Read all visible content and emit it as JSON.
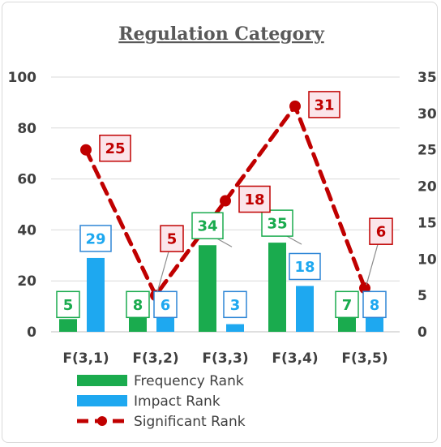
{
  "chart_data": {
    "type": "bar",
    "title": "Regulation Category",
    "categories": [
      "F(3,1)",
      "F(3,2)",
      "F(3,3)",
      "F(3,4)",
      "F(3,5)"
    ],
    "series": [
      {
        "name": "Frequency Rank",
        "type": "bar",
        "axis": "left",
        "color": "#1aab4e",
        "values": [
          5,
          8,
          34,
          35,
          7
        ]
      },
      {
        "name": "Impact Rank",
        "type": "bar",
        "axis": "left",
        "color": "#1ea8f0",
        "values": [
          29,
          6,
          3,
          18,
          8
        ]
      },
      {
        "name": "Significant Rank",
        "type": "line",
        "axis": "right",
        "color": "#c00000",
        "values": [
          25,
          5,
          18,
          31,
          6
        ]
      }
    ],
    "y_left": {
      "min": 0,
      "max": 100,
      "ticks": [
        0,
        20,
        40,
        60,
        80,
        100
      ]
    },
    "y_right": {
      "min": 0,
      "max": 35,
      "ticks": [
        0,
        5,
        10,
        15,
        20,
        25,
        30,
        35
      ]
    },
    "grid": true,
    "legend_position": "bottom"
  }
}
